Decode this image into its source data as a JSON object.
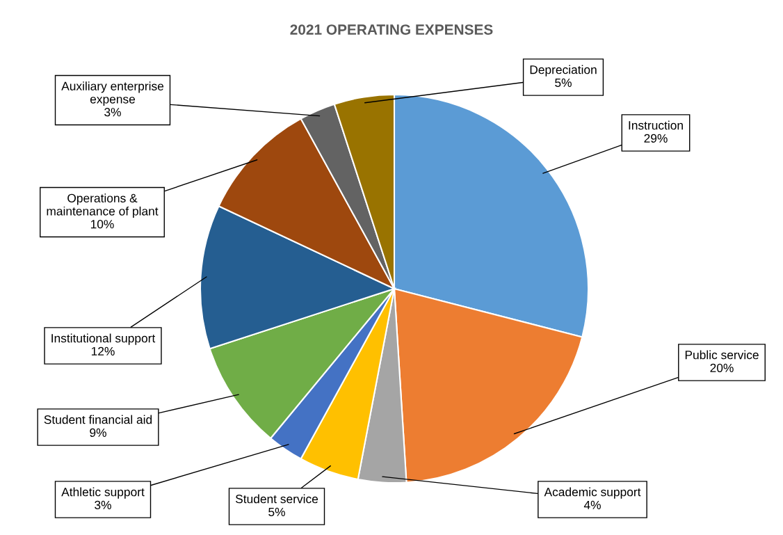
{
  "chart_data": {
    "type": "pie",
    "title": "2021 OPERATING EXPENSES",
    "categories": [
      "Instruction",
      "Public service",
      "Academic support",
      "Student service",
      "Athletic support",
      "Student financial aid",
      "Institutional support",
      "Operations &\nmaintenance of plant",
      "Auxiliary enterprise\nexpense",
      "Depreciation"
    ],
    "values": [
      29,
      20,
      4,
      5,
      3,
      9,
      12,
      10,
      3,
      5
    ],
    "value_labels": [
      "29%",
      "20%",
      "4%",
      "5%",
      "3%",
      "9%",
      "12%",
      "10%",
      "3%",
      "5%"
    ],
    "colors": [
      "#5b9bd5",
      "#ed7d31",
      "#a5a5a5",
      "#ffc000",
      "#4472c4",
      "#70ad47",
      "#255e91",
      "#9e480e",
      "#636363",
      "#997300"
    ],
    "legend": false
  }
}
